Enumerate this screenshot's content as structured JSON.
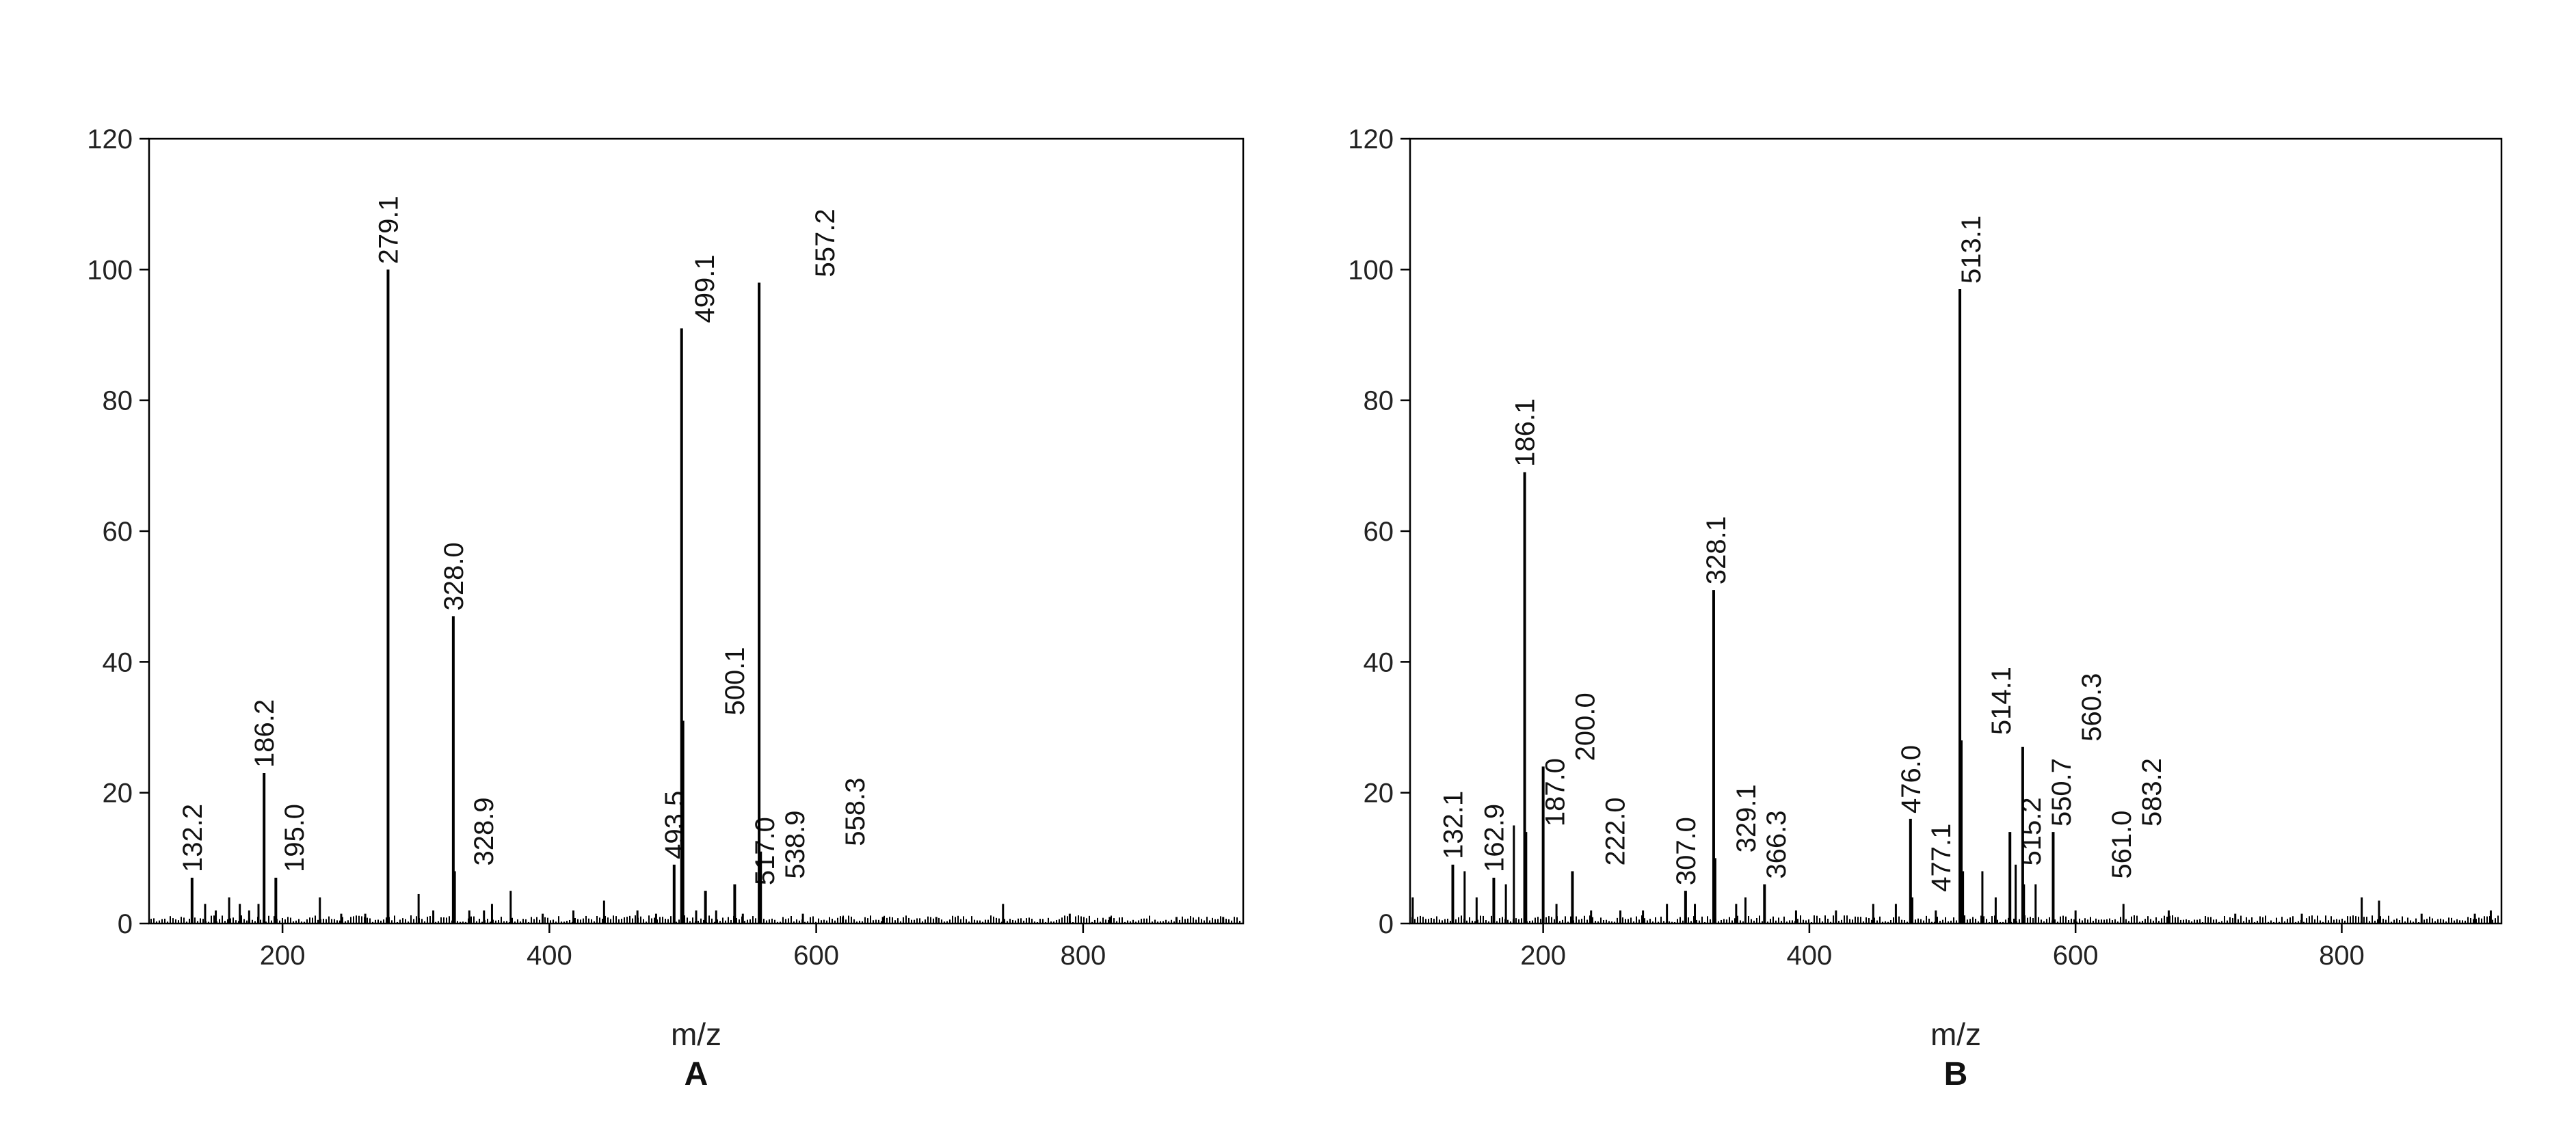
{
  "chart_data": [
    {
      "type": "bar",
      "panel": "A",
      "xlabel": "m/z",
      "ylabel": "",
      "xlim": [
        100,
        920
      ],
      "ylim": [
        0,
        120
      ],
      "xticks": [
        200,
        400,
        600,
        800
      ],
      "yticks": [
        0,
        20,
        40,
        60,
        80,
        100,
        120
      ],
      "grid": false,
      "peaks": [
        {
          "x": 132.2,
          "y": 7,
          "label": "132.2"
        },
        {
          "x": 186.2,
          "y": 23,
          "label": "186.2"
        },
        {
          "x": 195.0,
          "y": 7,
          "label": "195.0"
        },
        {
          "x": 279.1,
          "y": 100,
          "label": "279.1"
        },
        {
          "x": 328.0,
          "y": 47,
          "label": "328.0"
        },
        {
          "x": 328.9,
          "y": 8,
          "label": "328.9"
        },
        {
          "x": 493.5,
          "y": 9,
          "label": "493.5"
        },
        {
          "x": 499.1,
          "y": 91,
          "label": "499.1"
        },
        {
          "x": 500.1,
          "y": 31,
          "label": "500.1"
        },
        {
          "x": 517.0,
          "y": 5,
          "label": "517.0"
        },
        {
          "x": 538.9,
          "y": 6,
          "label": "538.9"
        },
        {
          "x": 557.2,
          "y": 98,
          "label": "557.2"
        },
        {
          "x": 558.3,
          "y": 11,
          "label": "558.3"
        }
      ],
      "minor_peaks": [
        {
          "x": 142,
          "y": 3
        },
        {
          "x": 150,
          "y": 2
        },
        {
          "x": 160,
          "y": 4
        },
        {
          "x": 168,
          "y": 3
        },
        {
          "x": 175,
          "y": 2
        },
        {
          "x": 182,
          "y": 3
        },
        {
          "x": 228,
          "y": 4
        },
        {
          "x": 244,
          "y": 1.5
        },
        {
          "x": 262,
          "y": 1.5
        },
        {
          "x": 302,
          "y": 4.5
        },
        {
          "x": 313,
          "y": 2
        },
        {
          "x": 340,
          "y": 2
        },
        {
          "x": 351,
          "y": 2
        },
        {
          "x": 357,
          "y": 3
        },
        {
          "x": 371,
          "y": 5
        },
        {
          "x": 395,
          "y": 1.5
        },
        {
          "x": 418,
          "y": 2
        },
        {
          "x": 441,
          "y": 3.5
        },
        {
          "x": 466,
          "y": 2
        },
        {
          "x": 480,
          "y": 1.5
        },
        {
          "x": 510,
          "y": 2
        },
        {
          "x": 525,
          "y": 2
        },
        {
          "x": 545,
          "y": 1.5
        },
        {
          "x": 590,
          "y": 1.5
        },
        {
          "x": 620,
          "y": 1
        },
        {
          "x": 650,
          "y": 1
        },
        {
          "x": 690,
          "y": 1
        },
        {
          "x": 740,
          "y": 3
        },
        {
          "x": 790,
          "y": 1.5
        },
        {
          "x": 820,
          "y": 1
        },
        {
          "x": 870,
          "y": 1
        },
        {
          "x": 905,
          "y": 1
        }
      ],
      "caption": "A"
    },
    {
      "type": "bar",
      "panel": "B",
      "xlabel": "m/z",
      "ylabel": "",
      "xlim": [
        100,
        920
      ],
      "ylim": [
        0,
        120
      ],
      "xticks": [
        200,
        400,
        600,
        800
      ],
      "yticks": [
        0,
        20,
        40,
        60,
        80,
        100,
        120
      ],
      "grid": false,
      "peaks": [
        {
          "x": 132.1,
          "y": 9,
          "label": "132.1"
        },
        {
          "x": 162.9,
          "y": 7,
          "label": "162.9"
        },
        {
          "x": 186.1,
          "y": 69,
          "label": "186.1"
        },
        {
          "x": 187.0,
          "y": 14,
          "label": "187.0"
        },
        {
          "x": 200.0,
          "y": 24,
          "label": "200.0"
        },
        {
          "x": 222.0,
          "y": 8,
          "label": "222.0"
        },
        {
          "x": 307.0,
          "y": 5,
          "label": "307.0"
        },
        {
          "x": 328.1,
          "y": 51,
          "label": "328.1"
        },
        {
          "x": 329.1,
          "y": 10,
          "label": "329.1"
        },
        {
          "x": 366.3,
          "y": 6,
          "label": "366.3"
        },
        {
          "x": 476.0,
          "y": 16,
          "label": "476.0"
        },
        {
          "x": 477.1,
          "y": 4,
          "label": "477.1"
        },
        {
          "x": 513.1,
          "y": 97,
          "label": "513.1"
        },
        {
          "x": 514.1,
          "y": 28,
          "label": "514.1"
        },
        {
          "x": 515.2,
          "y": 8,
          "label": "515.2"
        },
        {
          "x": 550.7,
          "y": 14,
          "label": "550.7"
        },
        {
          "x": 560.3,
          "y": 27,
          "label": "560.3"
        },
        {
          "x": 561.0,
          "y": 6,
          "label": "561.0"
        },
        {
          "x": 583.2,
          "y": 14,
          "label": "583.2"
        }
      ],
      "minor_peaks": [
        {
          "x": 102,
          "y": 4
        },
        {
          "x": 141,
          "y": 8
        },
        {
          "x": 150,
          "y": 4
        },
        {
          "x": 172,
          "y": 6
        },
        {
          "x": 178,
          "y": 15
        },
        {
          "x": 210,
          "y": 3
        },
        {
          "x": 236,
          "y": 2
        },
        {
          "x": 258,
          "y": 2
        },
        {
          "x": 275,
          "y": 2
        },
        {
          "x": 293,
          "y": 3
        },
        {
          "x": 314,
          "y": 3
        },
        {
          "x": 345,
          "y": 3
        },
        {
          "x": 352,
          "y": 4
        },
        {
          "x": 390,
          "y": 2
        },
        {
          "x": 420,
          "y": 2
        },
        {
          "x": 448,
          "y": 3
        },
        {
          "x": 465,
          "y": 3
        },
        {
          "x": 495,
          "y": 2
        },
        {
          "x": 530,
          "y": 8
        },
        {
          "x": 540,
          "y": 4
        },
        {
          "x": 555,
          "y": 9
        },
        {
          "x": 570,
          "y": 6
        },
        {
          "x": 600,
          "y": 2
        },
        {
          "x": 636,
          "y": 3
        },
        {
          "x": 670,
          "y": 2
        },
        {
          "x": 720,
          "y": 1.5
        },
        {
          "x": 770,
          "y": 1.5
        },
        {
          "x": 815,
          "y": 4
        },
        {
          "x": 828,
          "y": 3.5
        },
        {
          "x": 860,
          "y": 1.5
        },
        {
          "x": 900,
          "y": 1.5
        },
        {
          "x": 912,
          "y": 2
        }
      ],
      "caption": "B"
    }
  ]
}
